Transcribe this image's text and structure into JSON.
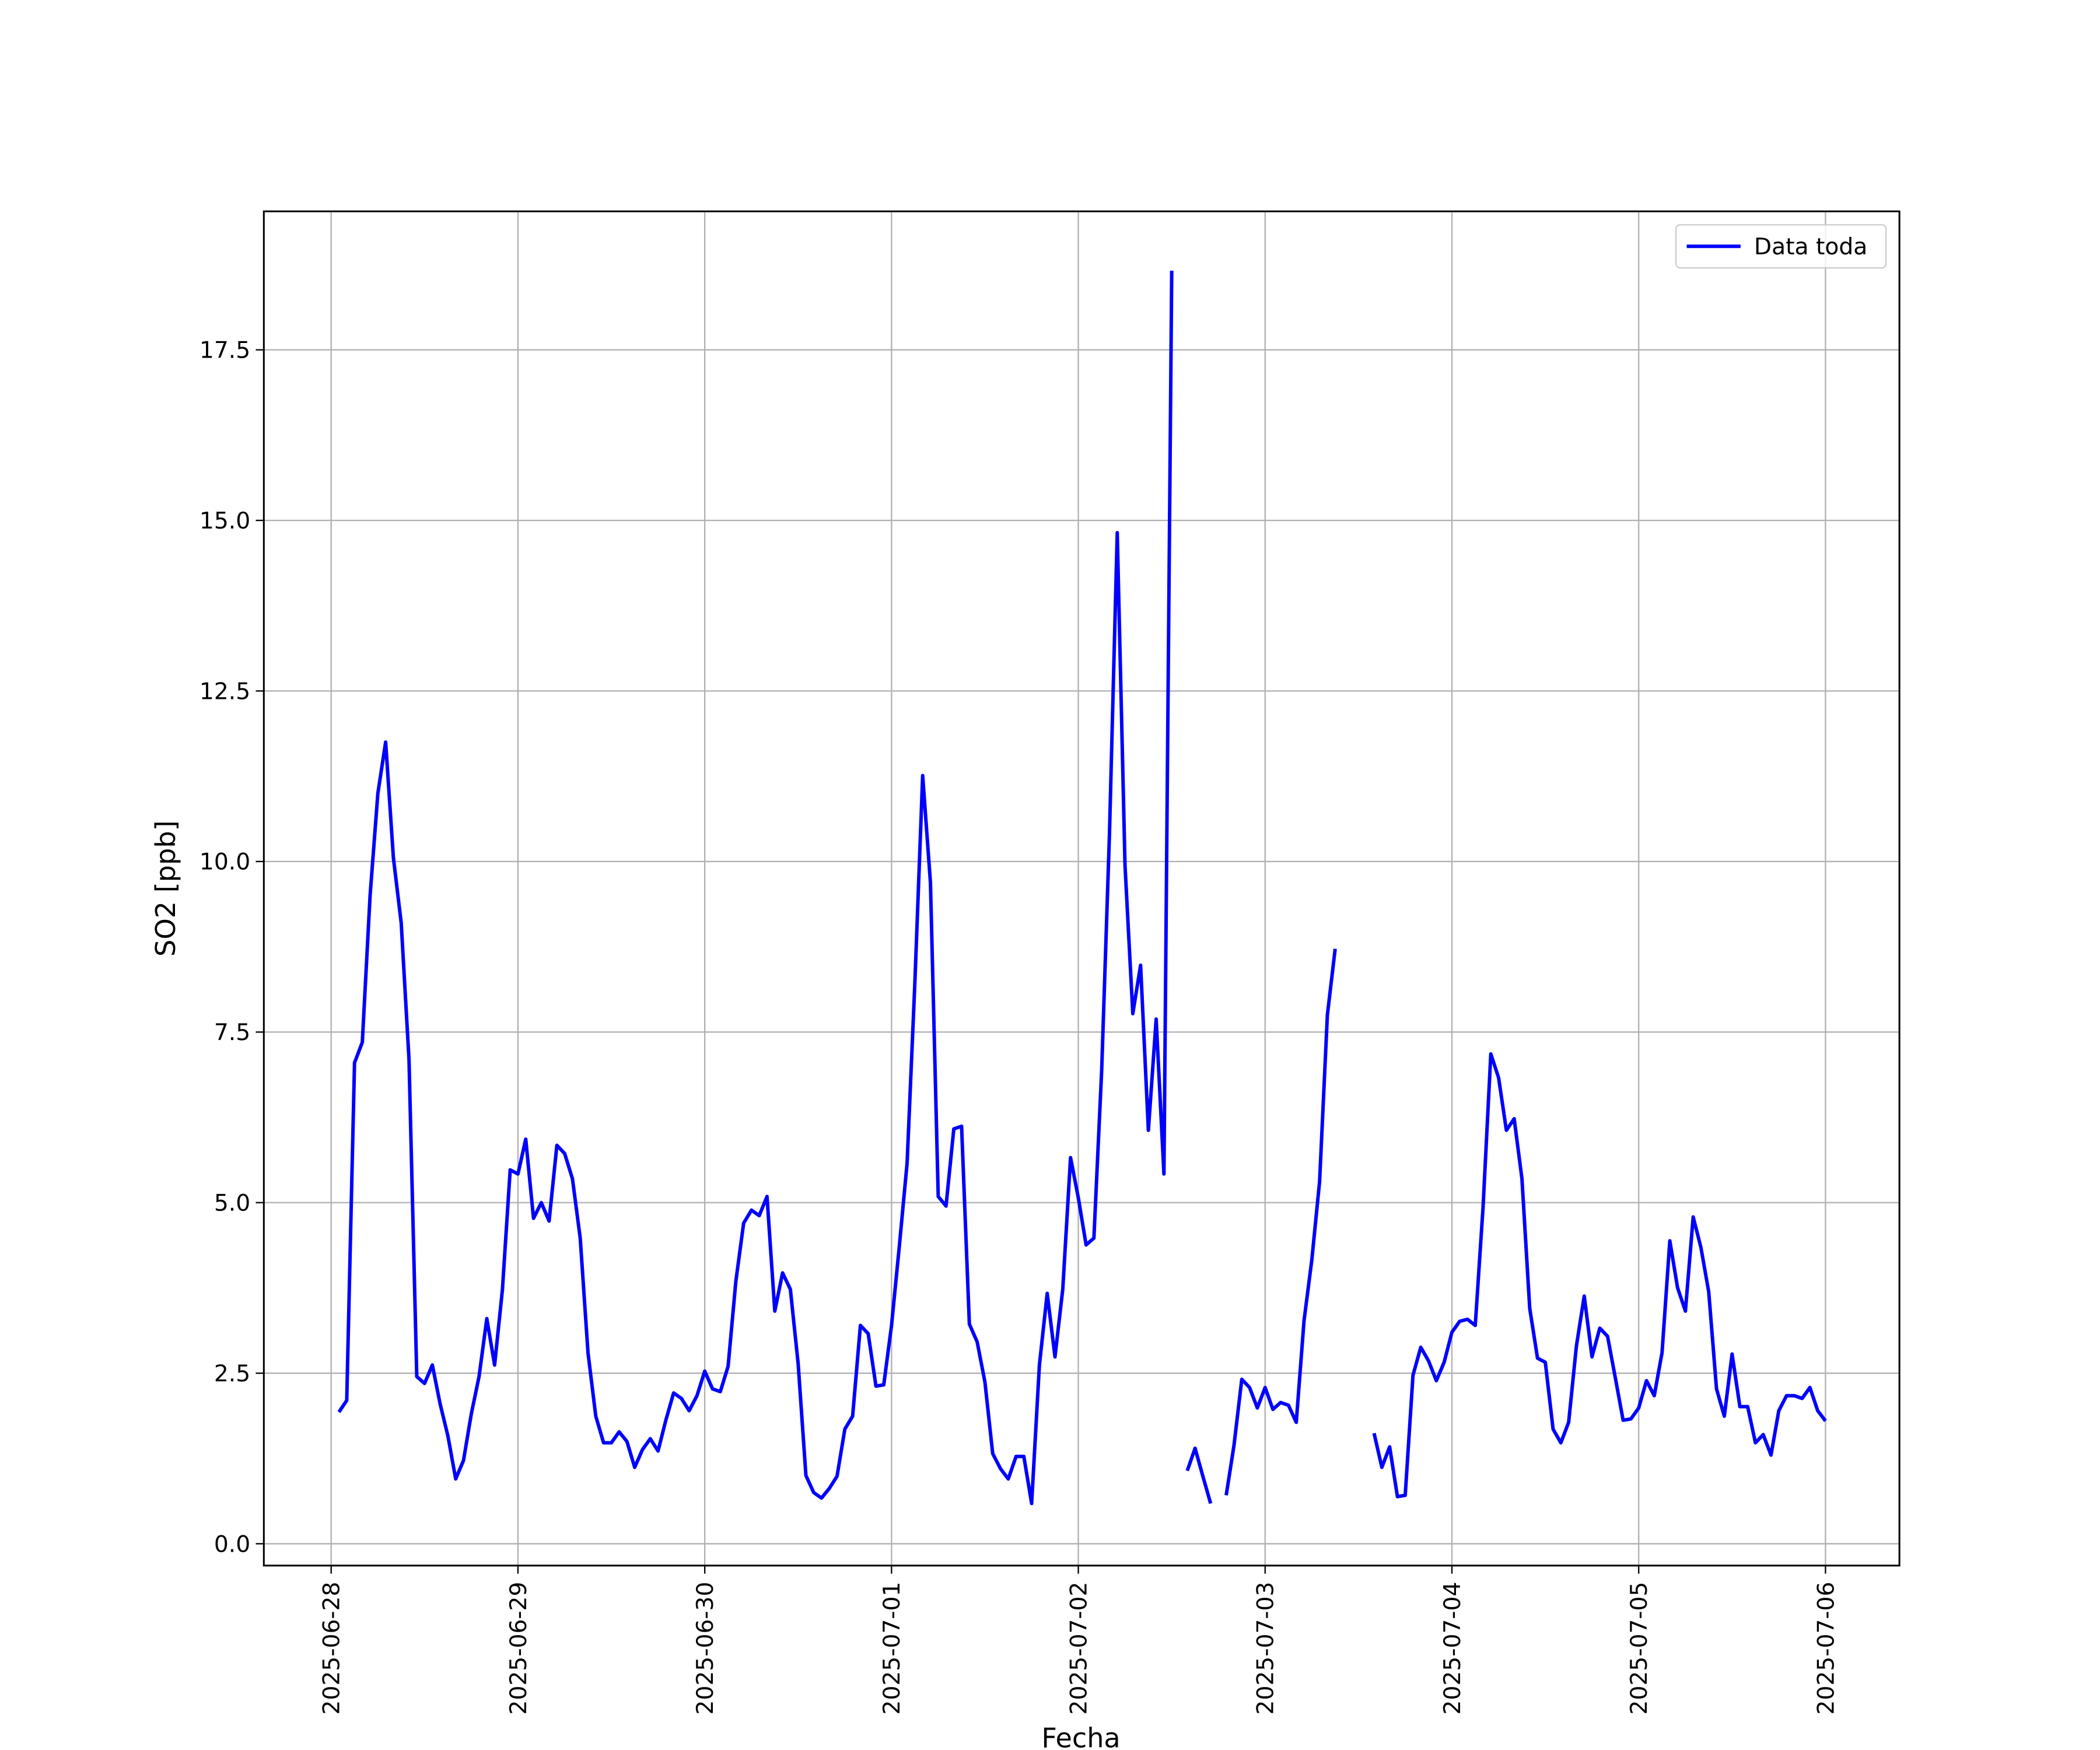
{
  "chart_data": {
    "type": "line",
    "xlabel": "Fecha",
    "ylabel": "SO2 [ppb]",
    "x": [
      "2025-06-28 01:00",
      "2025-06-28 02:00",
      "2025-06-28 03:00",
      "2025-06-28 04:00",
      "2025-06-28 05:00",
      "2025-06-28 06:00",
      "2025-06-28 07:00",
      "2025-06-28 08:00",
      "2025-06-28 09:00",
      "2025-06-28 10:00",
      "2025-06-28 11:00",
      "2025-06-28 12:00",
      "2025-06-28 13:00",
      "2025-06-28 14:00",
      "2025-06-28 15:00",
      "2025-06-28 16:00",
      "2025-06-28 17:00",
      "2025-06-28 18:00",
      "2025-06-28 19:00",
      "2025-06-28 20:00",
      "2025-06-28 21:00",
      "2025-06-28 22:00",
      "2025-06-28 23:00",
      "2025-06-29 00:00",
      "2025-06-29 01:00",
      "2025-06-29 02:00",
      "2025-06-29 03:00",
      "2025-06-29 04:00",
      "2025-06-29 05:00",
      "2025-06-29 06:00",
      "2025-06-29 07:00",
      "2025-06-29 08:00",
      "2025-06-29 09:00",
      "2025-06-29 10:00",
      "2025-06-29 11:00",
      "2025-06-29 12:00",
      "2025-06-29 13:00",
      "2025-06-29 14:00",
      "2025-06-29 15:00",
      "2025-06-29 16:00",
      "2025-06-29 17:00",
      "2025-06-29 18:00",
      "2025-06-29 19:00",
      "2025-06-29 20:00",
      "2025-06-29 21:00",
      "2025-06-29 22:00",
      "2025-06-29 23:00",
      "2025-06-30 00:00",
      "2025-06-30 01:00",
      "2025-06-30 02:00",
      "2025-06-30 03:00",
      "2025-06-30 04:00",
      "2025-06-30 05:00",
      "2025-06-30 06:00",
      "2025-06-30 07:00",
      "2025-06-30 08:00",
      "2025-06-30 09:00",
      "2025-06-30 10:00",
      "2025-06-30 11:00",
      "2025-06-30 12:00",
      "2025-06-30 13:00",
      "2025-06-30 14:00",
      "2025-06-30 15:00",
      "2025-06-30 16:00",
      "2025-06-30 17:00",
      "2025-06-30 18:00",
      "2025-06-30 19:00",
      "2025-06-30 20:00",
      "2025-06-30 21:00",
      "2025-06-30 22:00",
      "2025-06-30 23:00",
      "2025-07-01 00:00",
      "2025-07-01 01:00",
      "2025-07-01 02:00",
      "2025-07-01 03:00",
      "2025-07-01 04:00",
      "2025-07-01 05:00",
      "2025-07-01 06:00",
      "2025-07-01 07:00",
      "2025-07-01 08:00",
      "2025-07-01 09:00",
      "2025-07-01 10:00",
      "2025-07-01 11:00",
      "2025-07-01 12:00",
      "2025-07-01 13:00",
      "2025-07-01 14:00",
      "2025-07-01 15:00",
      "2025-07-01 16:00",
      "2025-07-01 17:00",
      "2025-07-01 18:00",
      "2025-07-01 19:00",
      "2025-07-01 20:00",
      "2025-07-01 21:00",
      "2025-07-01 22:00",
      "2025-07-01 23:00",
      "2025-07-02 00:00",
      "2025-07-02 01:00",
      "2025-07-02 02:00",
      "2025-07-02 03:00",
      "2025-07-02 04:00",
      "2025-07-02 05:00",
      "2025-07-02 06:00",
      "2025-07-02 07:00",
      "2025-07-02 08:00",
      "2025-07-02 09:00",
      "2025-07-02 10:00",
      "2025-07-02 11:00",
      "2025-07-02 12:00",
      "2025-07-02 13:00",
      "2025-07-02 14:00",
      "2025-07-02 15:00",
      "2025-07-02 16:00",
      "2025-07-02 17:00",
      "2025-07-02 18:00",
      "2025-07-02 19:00",
      "2025-07-02 20:00",
      "2025-07-02 21:00",
      "2025-07-02 22:00",
      "2025-07-02 23:00",
      "2025-07-03 00:00",
      "2025-07-03 01:00",
      "2025-07-03 02:00",
      "2025-07-03 03:00",
      "2025-07-03 04:00",
      "2025-07-03 05:00",
      "2025-07-03 06:00",
      "2025-07-03 07:00",
      "2025-07-03 08:00",
      "2025-07-03 09:00",
      "2025-07-03 10:00",
      "2025-07-03 11:00",
      "2025-07-03 12:00",
      "2025-07-03 13:00",
      "2025-07-03 14:00",
      "2025-07-03 15:00",
      "2025-07-03 16:00",
      "2025-07-03 17:00",
      "2025-07-03 18:00",
      "2025-07-03 19:00",
      "2025-07-03 20:00",
      "2025-07-03 21:00",
      "2025-07-03 22:00",
      "2025-07-03 23:00",
      "2025-07-04 00:00",
      "2025-07-04 01:00",
      "2025-07-04 02:00",
      "2025-07-04 03:00",
      "2025-07-04 04:00",
      "2025-07-04 05:00",
      "2025-07-04 06:00",
      "2025-07-04 07:00",
      "2025-07-04 08:00",
      "2025-07-04 09:00",
      "2025-07-04 10:00",
      "2025-07-04 11:00",
      "2025-07-04 12:00",
      "2025-07-04 13:00",
      "2025-07-04 14:00",
      "2025-07-04 15:00",
      "2025-07-04 16:00",
      "2025-07-04 17:00",
      "2025-07-04 18:00",
      "2025-07-04 19:00",
      "2025-07-04 20:00",
      "2025-07-04 21:00",
      "2025-07-04 22:00",
      "2025-07-04 23:00",
      "2025-07-05 00:00",
      "2025-07-05 01:00",
      "2025-07-05 02:00",
      "2025-07-05 03:00",
      "2025-07-05 04:00",
      "2025-07-05 05:00",
      "2025-07-05 06:00",
      "2025-07-05 07:00",
      "2025-07-05 08:00",
      "2025-07-05 09:00",
      "2025-07-05 10:00",
      "2025-07-05 11:00",
      "2025-07-05 12:00",
      "2025-07-05 13:00",
      "2025-07-05 14:00",
      "2025-07-05 15:00",
      "2025-07-05 16:00",
      "2025-07-05 17:00",
      "2025-07-05 18:00",
      "2025-07-05 19:00",
      "2025-07-05 20:00",
      "2025-07-05 21:00",
      "2025-07-05 22:00",
      "2025-07-05 23:00",
      "2025-07-06 00:00"
    ],
    "series": [
      {
        "name": "Data toda",
        "color": "#0000ff",
        "values": [
          1.93,
          2.1,
          7.05,
          7.35,
          9.5,
          11.0,
          11.75,
          10.05,
          9.1,
          7.1,
          2.45,
          2.35,
          2.62,
          2.05,
          1.58,
          0.95,
          1.22,
          1.9,
          2.45,
          3.3,
          2.62,
          3.72,
          5.48,
          5.42,
          5.93,
          4.77,
          5.0,
          4.73,
          5.84,
          5.72,
          5.35,
          4.48,
          2.8,
          1.87,
          1.48,
          1.48,
          1.64,
          1.5,
          1.12,
          1.38,
          1.54,
          1.36,
          1.81,
          2.21,
          2.13,
          1.95,
          2.17,
          2.53,
          2.27,
          2.23,
          2.6,
          3.85,
          4.7,
          4.89,
          4.81,
          5.09,
          3.41,
          3.97,
          3.73,
          2.64,
          1.0,
          0.75,
          0.67,
          0.81,
          0.99,
          1.68,
          1.87,
          3.2,
          3.08,
          2.31,
          2.33,
          3.2,
          4.36,
          5.58,
          8.23,
          11.26,
          9.69,
          5.09,
          4.95,
          6.08,
          6.12,
          3.22,
          2.96,
          2.37,
          1.32,
          1.1,
          0.95,
          1.28,
          1.28,
          0.59,
          2.62,
          3.67,
          2.74,
          3.73,
          5.66,
          5.07,
          4.38,
          4.48,
          6.94,
          10.4,
          14.82,
          9.94,
          7.77,
          8.48,
          6.06,
          7.69,
          5.42,
          18.66,
          null,
          1.07,
          1.4,
          0.99,
          0.59,
          null,
          0.71,
          1.44,
          2.41,
          2.29,
          1.99,
          2.29,
          1.97,
          2.07,
          2.03,
          1.78,
          3.27,
          4.16,
          5.31,
          7.75,
          8.72,
          null,
          null,
          null,
          null,
          1.62,
          1.12,
          1.42,
          0.69,
          0.71,
          2.47,
          2.88,
          2.68,
          2.39,
          2.66,
          3.1,
          3.26,
          3.29,
          3.2,
          4.93,
          7.18,
          6.83,
          6.06,
          6.23,
          5.35,
          3.45,
          2.72,
          2.66,
          1.68,
          1.48,
          1.78,
          2.9,
          3.63,
          2.74,
          3.16,
          3.04,
          2.43,
          1.81,
          1.83,
          1.99,
          2.39,
          2.17,
          2.8,
          4.44,
          3.75,
          3.41,
          4.79,
          4.34,
          3.69,
          2.27,
          1.87,
          2.78,
          2.01,
          2.01,
          1.48,
          1.6,
          1.3,
          1.95,
          2.17,
          2.17,
          2.13,
          2.29,
          1.95,
          1.8
        ]
      }
    ],
    "xlim": [
      "2025-06-27 15:21",
      "2025-07-06 09:30"
    ],
    "xticks": [
      "2025-06-28",
      "2025-06-29",
      "2025-06-30",
      "2025-07-01",
      "2025-07-02",
      "2025-07-03",
      "2025-07-04",
      "2025-07-05",
      "2025-07-06"
    ],
    "ylim": [
      -0.32,
      19.53
    ],
    "yticks": [
      {
        "value": 0,
        "label": "0.0"
      },
      2.5,
      {
        "value": 5,
        "label": "5.0"
      },
      7.5,
      {
        "value": 10,
        "label": "10.0"
      },
      12.5,
      {
        "value": 15,
        "label": "15.0"
      },
      17.5
    ],
    "grid": true,
    "legend": "upper right"
  }
}
